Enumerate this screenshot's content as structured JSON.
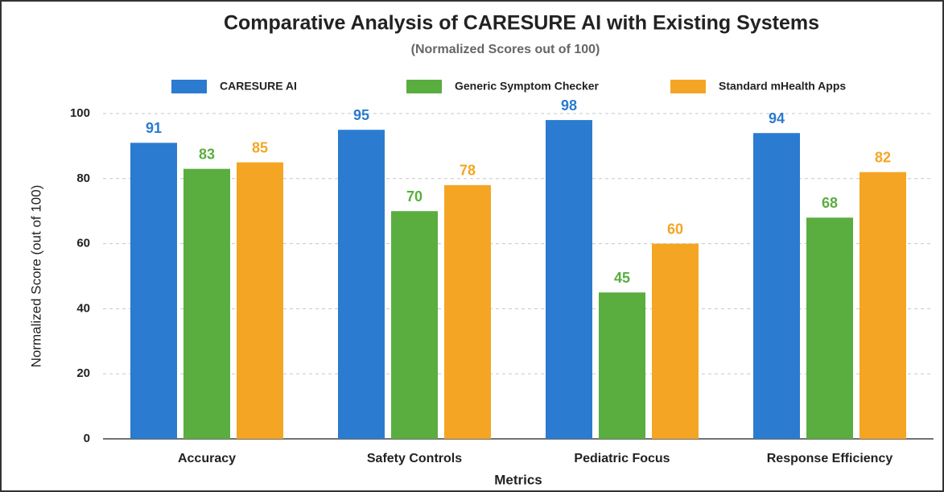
{
  "chart_data": {
    "type": "bar",
    "title": "Comparative Analysis of CARESURE AI with Existing Systems",
    "subtitle": "(Normalized Scores out of 100)",
    "x_label": "Metrics",
    "y_label": "Normalized Score (out of 100)",
    "categories": [
      "Accuracy",
      "Safety Controls",
      "Pediatric Focus",
      "Response Efficiency"
    ],
    "series": [
      {
        "name": "CARESURE AI",
        "color": "#2b7bd0",
        "values": [
          91,
          95,
          98,
          94
        ]
      },
      {
        "name": "Generic Symptom Checker",
        "color": "#5aae3f",
        "values": [
          83,
          70,
          45,
          68
        ]
      },
      {
        "name": "Standard mHealth Apps",
        "color": "#f5a524",
        "values": [
          85,
          78,
          60,
          82
        ]
      }
    ],
    "ylim": [
      0,
      100
    ],
    "yticks": [
      0,
      20,
      40,
      60,
      80,
      100
    ],
    "grid": true,
    "legend": "top"
  }
}
